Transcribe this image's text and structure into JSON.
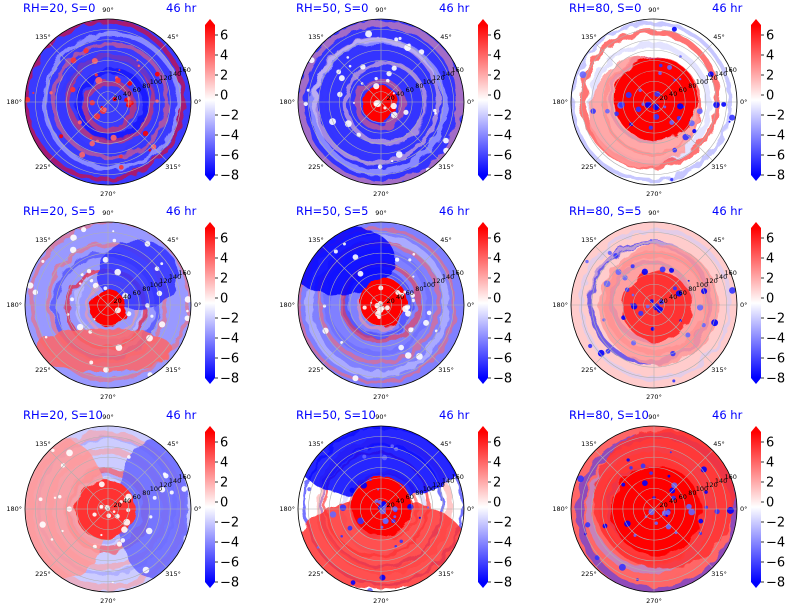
{
  "figure": {
    "time_label": "46 hr"
  },
  "colors": {
    "title": "#0000ff",
    "cmap": [
      "#0000ff",
      "#ffffff",
      "#ff0000"
    ]
  },
  "chart_data": [
    {
      "type": "heatmap",
      "subtype": "polar-filled-contour",
      "title": "RH=20, S=0",
      "time_label": "46 hr",
      "rh": 20,
      "s": 0,
      "theta_ticks": [
        "90°",
        "45°",
        "0°",
        "315°",
        "270°",
        "225°",
        "180°",
        "135°"
      ],
      "r_ticks": [
        20,
        40,
        60,
        80,
        100,
        120,
        140,
        160
      ],
      "colorbar": {
        "ticks": [
          6,
          4,
          2,
          0,
          -2,
          -4,
          -6,
          -8
        ],
        "range": [
          -8,
          7
        ],
        "extend": "both"
      },
      "character": "predominantly negative values with isolated positive spots near the center"
    },
    {
      "type": "heatmap",
      "subtype": "polar-filled-contour",
      "title": "RH=50, S=0",
      "time_label": "46 hr",
      "rh": 50,
      "s": 0,
      "theta_ticks": [
        "90°",
        "45°",
        "0°",
        "315°",
        "270°",
        "225°",
        "180°",
        "135°"
      ],
      "r_ticks": [
        20,
        40,
        60,
        80,
        100,
        120,
        140,
        160
      ],
      "colorbar": {
        "ticks": [
          6,
          4,
          2,
          0,
          -2,
          -4,
          -6,
          -8
        ],
        "range": [
          -8,
          7
        ],
        "extend": "both"
      },
      "character": "strong positive core near the center surrounded by negative values"
    },
    {
      "type": "heatmap",
      "subtype": "polar-filled-contour",
      "title": "RH=80, S=0",
      "time_label": "46 hr",
      "rh": 80,
      "s": 0,
      "theta_ticks": [
        "90°",
        "45°",
        "0°",
        "315°",
        "270°",
        "225°",
        "180°",
        "135°"
      ],
      "r_ticks": [
        20,
        40,
        60,
        80,
        100,
        120,
        140,
        160
      ],
      "colorbar": {
        "ticks": [
          6,
          4,
          2,
          0,
          -2,
          -4,
          -6,
          -8
        ],
        "range": [
          -8,
          7
        ],
        "extend": "both"
      },
      "character": "large positive core with positive spiral bands"
    },
    {
      "type": "heatmap",
      "subtype": "polar-filled-contour",
      "title": "RH=20, S=5",
      "time_label": "46 hr",
      "rh": 20,
      "s": 5,
      "theta_ticks": [
        "90°",
        "45°",
        "0°",
        "315°",
        "270°",
        "225°",
        "180°",
        "135°"
      ],
      "r_ticks": [
        20,
        40,
        60,
        80,
        100,
        120,
        140,
        160
      ],
      "colorbar": {
        "ticks": [
          6,
          4,
          2,
          0,
          -2,
          -4,
          -6,
          -8
        ],
        "range": [
          -8,
          7
        ],
        "extend": "both"
      },
      "character": "positive core near the center, positive band to the south, negative elsewhere"
    },
    {
      "type": "heatmap",
      "subtype": "polar-filled-contour",
      "title": "RH=50, S=5",
      "time_label": "46 hr",
      "rh": 50,
      "s": 5,
      "theta_ticks": [
        "90°",
        "45°",
        "0°",
        "315°",
        "270°",
        "225°",
        "180°",
        "135°"
      ],
      "r_ticks": [
        20,
        40,
        60,
        80,
        100,
        120,
        140,
        160
      ],
      "colorbar": {
        "ticks": [
          6,
          4,
          2,
          0,
          -2,
          -4,
          -6,
          -8
        ],
        "range": [
          -8,
          7
        ],
        "extend": "both"
      },
      "character": "positive core near the center, strongly negative to the north-west"
    },
    {
      "type": "heatmap",
      "subtype": "polar-filled-contour",
      "title": "RH=80, S=5",
      "time_label": "46 hr",
      "rh": 80,
      "s": 5,
      "theta_ticks": [
        "90°",
        "45°",
        "0°",
        "315°",
        "270°",
        "225°",
        "180°",
        "135°"
      ],
      "r_ticks": [
        20,
        40,
        60,
        80,
        100,
        120,
        140,
        160
      ],
      "colorbar": {
        "ticks": [
          6,
          4,
          2,
          0,
          -2,
          -4,
          -6,
          -8
        ],
        "range": [
          -8,
          7
        ],
        "extend": "both"
      },
      "character": "broad positive core with mixed bands"
    },
    {
      "type": "heatmap",
      "subtype": "polar-filled-contour",
      "title": "RH=20, S=10",
      "time_label": "46 hr",
      "rh": 20,
      "s": 10,
      "theta_ticks": [
        "90°",
        "45°",
        "0°",
        "315°",
        "270°",
        "225°",
        "180°",
        "135°"
      ],
      "r_ticks": [
        20,
        40,
        60,
        80,
        100,
        120,
        140,
        160
      ],
      "colorbar": {
        "ticks": [
          6,
          4,
          2,
          0,
          -2,
          -4,
          -6,
          -8
        ],
        "range": [
          -8,
          7
        ],
        "extend": "both"
      },
      "character": "positive values to the west, negative to the east"
    },
    {
      "type": "heatmap",
      "subtype": "polar-filled-contour",
      "title": "RH=50, S=10",
      "time_label": "46 hr",
      "rh": 50,
      "s": 10,
      "theta_ticks": [
        "90°",
        "45°",
        "0°",
        "315°",
        "270°",
        "225°",
        "180°",
        "135°"
      ],
      "r_ticks": [
        20,
        40,
        60,
        80,
        100,
        120,
        140,
        160
      ],
      "colorbar": {
        "ticks": [
          6,
          4,
          2,
          0,
          -2,
          -4,
          -6,
          -8
        ],
        "range": [
          -8,
          7
        ],
        "extend": "both"
      },
      "character": "positive in the south half, strongly negative in the north"
    },
    {
      "type": "heatmap",
      "subtype": "polar-filled-contour",
      "title": "RH=80, S=10",
      "time_label": "46 hr",
      "rh": 80,
      "s": 10,
      "theta_ticks": [
        "90°",
        "45°",
        "0°",
        "315°",
        "270°",
        "225°",
        "180°",
        "135°"
      ],
      "r_ticks": [
        20,
        40,
        60,
        80,
        100,
        120,
        140,
        160
      ],
      "colorbar": {
        "ticks": [
          6,
          4,
          2,
          0,
          -2,
          -4,
          -6,
          -8
        ],
        "range": [
          -8,
          7
        ],
        "extend": "both"
      },
      "character": "predominantly positive over most of the domain"
    }
  ]
}
